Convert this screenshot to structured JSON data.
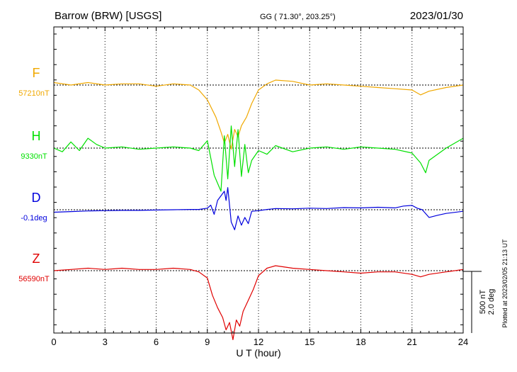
{
  "chart_data": {
    "type": "line",
    "title_left": "Barrow (BRW)  [USGS]",
    "title_center": "GG ( 71.30°, 203.25°)",
    "title_right": "2023/01/30",
    "xlabel": "U T (hour)",
    "xlim": [
      0,
      24
    ],
    "x_ticks": [
      "0",
      "3",
      "6",
      "9",
      "12",
      "15",
      "18",
      "21",
      "24"
    ],
    "grid": "dotted vertical every 3 hours",
    "scale_bar": {
      "line1": "500 nT",
      "line2": "2.0 deg"
    },
    "side_note": "Plotted at 2023/02/05 21:13 UT",
    "series": [
      {
        "name": "F",
        "baseline_label": "57210nT",
        "color": "#f0a800",
        "unit": "nT",
        "x": [
          0,
          1,
          2,
          3,
          4,
          5,
          6,
          7,
          8,
          8.5,
          9,
          9.5,
          9.8,
          10,
          10.2,
          10.4,
          10.6,
          10.8,
          11,
          11.3,
          11.6,
          12,
          12.5,
          13,
          14,
          15,
          16,
          17,
          18,
          19,
          20,
          21,
          21.5,
          22,
          23,
          24
        ],
        "values": [
          20,
          0,
          20,
          0,
          10,
          10,
          -10,
          10,
          0,
          -40,
          -120,
          -260,
          -380,
          -470,
          -400,
          -520,
          -360,
          -420,
          -330,
          -260,
          -150,
          -40,
          10,
          40,
          30,
          0,
          10,
          0,
          -10,
          -20,
          -30,
          -40,
          -80,
          -50,
          -20,
          0
        ]
      },
      {
        "name": "H",
        "baseline_label": "9330nT",
        "color": "#00e000",
        "unit": "nT",
        "x": [
          0,
          0.5,
          1,
          1.5,
          2,
          2.5,
          3,
          4,
          5,
          6,
          7,
          8,
          8.5,
          9,
          9.4,
          9.8,
          10,
          10.2,
          10.4,
          10.6,
          10.8,
          11,
          11.2,
          11.4,
          11.6,
          12,
          12.5,
          13,
          14,
          15,
          16,
          17,
          18,
          19,
          20,
          21,
          21.5,
          21.8,
          22,
          23,
          24
        ],
        "values": [
          0,
          -30,
          50,
          -20,
          80,
          30,
          0,
          10,
          -10,
          0,
          10,
          0,
          -20,
          60,
          -220,
          -350,
          100,
          -250,
          180,
          -150,
          150,
          -230,
          30,
          -200,
          -100,
          -20,
          -50,
          20,
          -30,
          0,
          10,
          -10,
          10,
          0,
          -10,
          -40,
          -120,
          -200,
          -100,
          0,
          80
        ]
      },
      {
        "name": "D",
        "baseline_label": "-0.1deg",
        "color": "#0000dd",
        "unit": "deg",
        "x": [
          0,
          1,
          2,
          3,
          4,
          5,
          6,
          7,
          8,
          8.5,
          9,
          9.2,
          9.4,
          9.6,
          9.8,
          10,
          10.1,
          10.2,
          10.4,
          10.6,
          10.8,
          11,
          11.2,
          11.4,
          11.6,
          12,
          12.5,
          13,
          14,
          15,
          16,
          17,
          18,
          19,
          20,
          20.5,
          21,
          21.3,
          21.6,
          22,
          22.5,
          23,
          24
        ],
        "values": [
          -0.08,
          -0.06,
          -0.04,
          -0.03,
          -0.02,
          -0.02,
          -0.01,
          0.0,
          0.01,
          0.01,
          0.05,
          0.15,
          -0.15,
          0.3,
          0.45,
          0.6,
          0.3,
          0.72,
          -0.4,
          -0.65,
          -0.2,
          -0.5,
          -0.25,
          -0.45,
          -0.05,
          -0.03,
          0.01,
          0.04,
          0.03,
          0.05,
          0.04,
          0.07,
          0.06,
          0.08,
          0.06,
          0.12,
          0.14,
          0.05,
          0.0,
          -0.25,
          -0.18,
          -0.12,
          -0.05
        ]
      },
      {
        "name": "Z",
        "baseline_label": "56590nT",
        "color": "#e00000",
        "unit": "nT",
        "x": [
          0,
          1,
          2,
          3,
          4,
          5,
          6,
          7,
          8,
          8.5,
          9,
          9.3,
          9.6,
          9.9,
          10.1,
          10.3,
          10.5,
          10.7,
          10.9,
          11.1,
          11.4,
          11.7,
          12,
          12.5,
          13,
          14,
          15,
          16,
          17,
          18,
          19,
          20,
          21,
          21.5,
          22,
          23,
          24
        ],
        "values": [
          0,
          10,
          20,
          10,
          20,
          10,
          10,
          20,
          10,
          -10,
          -60,
          -200,
          -300,
          -380,
          -480,
          -420,
          -560,
          -400,
          -450,
          -330,
          -240,
          -150,
          -40,
          20,
          40,
          20,
          10,
          0,
          -10,
          -20,
          -10,
          -10,
          -30,
          -50,
          -30,
          -10,
          10
        ]
      }
    ]
  }
}
